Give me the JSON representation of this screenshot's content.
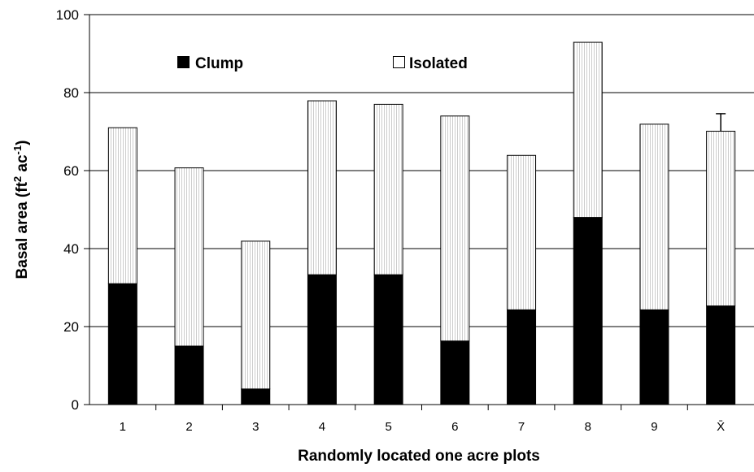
{
  "chart_data": {
    "type": "bar",
    "stacked": true,
    "categories": [
      "1",
      "2",
      "3",
      "4",
      "5",
      "6",
      "7",
      "8",
      "9",
      "X̄"
    ],
    "series": [
      {
        "name": "Clump",
        "color": "#000000",
        "fill": "solid",
        "values": [
          31,
          15,
          4,
          33.3,
          33.3,
          16.3,
          24.3,
          48,
          24.3,
          25.3
        ]
      },
      {
        "name": "Isolated",
        "color": "#ffffff",
        "fill": "light vertical hatch",
        "values": [
          40,
          45.7,
          37.9,
          44.6,
          43.7,
          57.7,
          39.6,
          44.9,
          47.6,
          44.8
        ]
      }
    ],
    "error_bar": {
      "category": "X̄",
      "upper": 4.5
    },
    "xlabel": "Randomly located one acre plots",
    "ylabel": "Basal area (ft² ac⁻¹)",
    "ylim": [
      0,
      100
    ],
    "yticks": [
      "0",
      "20",
      "40",
      "60",
      "80",
      "100"
    ],
    "grid": "horizontal",
    "legend": "top-left"
  }
}
